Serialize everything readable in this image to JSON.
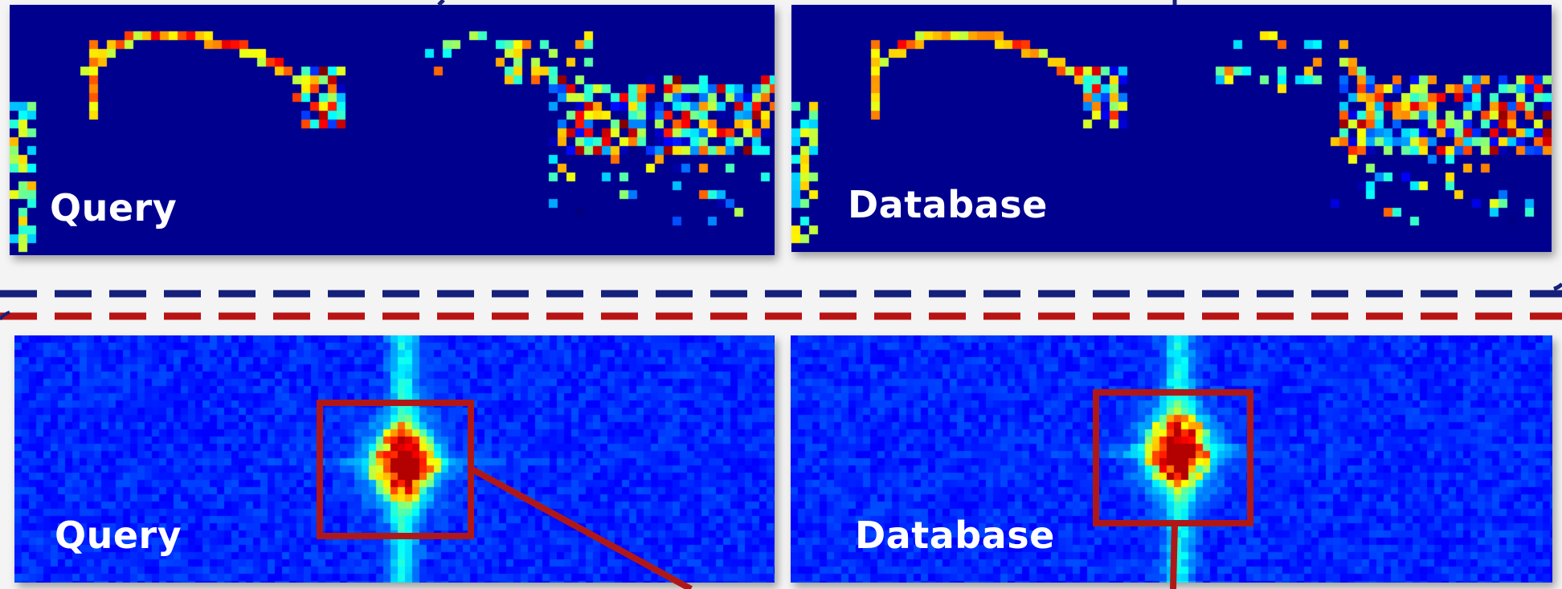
{
  "panels": {
    "query_top": {
      "label": "Query"
    },
    "database_top": {
      "label": "Database"
    },
    "query_bottom": {
      "label": "Query"
    },
    "database_bottom": {
      "label": "Database"
    }
  },
  "colors": {
    "heatmap_background": "#00008f",
    "spectrum_background": "#0a1ecc",
    "separator_blue": "#14207a",
    "separator_red": "#b81414",
    "highlight_box": "#b01818",
    "label_text": "#ffffff"
  }
}
